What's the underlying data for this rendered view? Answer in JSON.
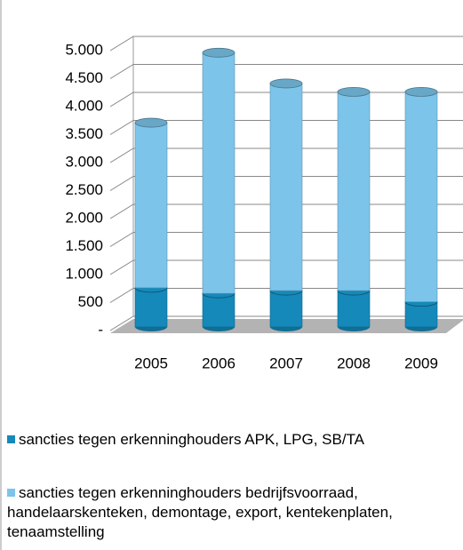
{
  "chart_data": {
    "type": "bar3d-stacked",
    "categories": [
      "2005",
      "2006",
      "2007",
      "2008",
      "2009"
    ],
    "series": [
      {
        "name": "sancties tegen erkenninghouders APK, LPG, SB/TA",
        "color": "#1589b9",
        "values": [
          700,
          600,
          650,
          650,
          450
        ]
      },
      {
        "name": "sancties tegen erkenninghouders bedrijfsvoorraad, handelaarskenteken, demontage, export, kentekenplaten, tenaamstelling",
        "color": "#7cc4ea",
        "values": [
          2950,
          4300,
          3700,
          3550,
          3750
        ]
      }
    ],
    "ylim": [
      0,
      5000
    ],
    "yticks": [
      {
        "value": 0,
        "label": "-"
      },
      500,
      {
        "value": 1000,
        "label": "1.000"
      },
      {
        "value": 1500,
        "label": "1.500"
      },
      {
        "value": 2000,
        "label": "2.000"
      },
      {
        "value": 2500,
        "label": "2.500"
      },
      {
        "value": 3000,
        "label": "3.000"
      },
      {
        "value": 3500,
        "label": "3.500"
      },
      {
        "value": 4000,
        "label": "4.000"
      },
      {
        "value": 4500,
        "label": "4.500"
      },
      {
        "value": 5000,
        "label": "5.000"
      }
    ],
    "grid": true
  }
}
